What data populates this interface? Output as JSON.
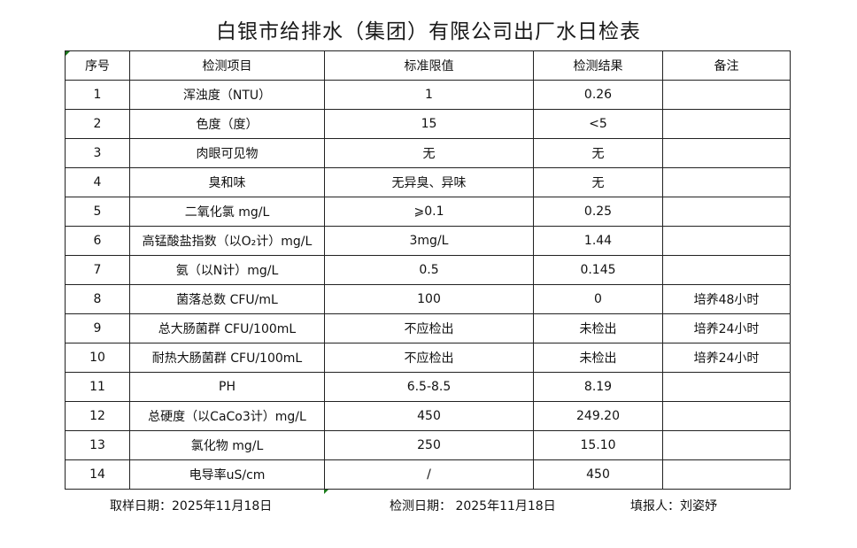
{
  "title": "白银市给排水（集团）有限公司出厂水日检表",
  "table": {
    "headers": [
      "序号",
      "检测项目",
      "标准限值",
      "检测结果",
      "备注"
    ],
    "rows": [
      [
        "1",
        "浑浊度（NTU）",
        "1",
        "0.26",
        ""
      ],
      [
        "2",
        "色度（度）",
        "15",
        "<5",
        ""
      ],
      [
        "3",
        "肉眼可见物",
        "无",
        "无",
        ""
      ],
      [
        "4",
        "臭和味",
        "无异臭、异味",
        "无",
        ""
      ],
      [
        "5",
        "二氧化氯 mg/L",
        "⩾0.1",
        "0.25",
        ""
      ],
      [
        "6",
        "高锰酸盐指数（以O₂计）mg/L",
        "3mg/L",
        "1.44",
        ""
      ],
      [
        "7",
        "氨（以N计）mg/L",
        "0.5",
        "0.145",
        ""
      ],
      [
        "8",
        "菌落总数 CFU/mL",
        "100",
        "0",
        "培养48小时"
      ],
      [
        "9",
        "总大肠菌群 CFU/100mL",
        "不应检出",
        "未检出",
        "培养24小时"
      ],
      [
        "10",
        "耐热大肠菌群 CFU/100mL",
        "不应检出",
        "未检出",
        "培养24小时"
      ],
      [
        "11",
        "PH",
        "6.5-8.5",
        "8.19",
        ""
      ],
      [
        "12",
        "总硬度（以CaCo3计）mg/L",
        "450",
        "249.20",
        ""
      ],
      [
        "13",
        "氯化物 mg/L",
        "250",
        "15.10",
        ""
      ],
      [
        "14",
        "电导率uS/cm",
        "/",
        "450",
        ""
      ]
    ]
  },
  "footer": {
    "sampling_date": "取样日期：2025年11月18日",
    "test_date": "检测日期：  2025年11月18日",
    "reporter": "填报人：刘姿妤"
  },
  "colors": {
    "cell_marker": "#1a7a1a",
    "border": "#222222"
  }
}
